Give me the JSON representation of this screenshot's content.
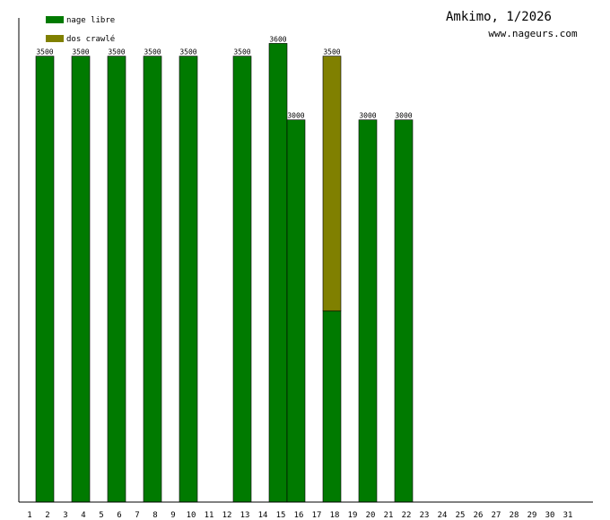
{
  "chart_data": {
    "type": "bar",
    "title": "Amkimo, 1/2026",
    "subtitle": "www.nageurs.com",
    "xlabel": "",
    "ylabel": "",
    "ylim": [
      0,
      3800
    ],
    "grid": false,
    "legend_position": "top-left",
    "colors": {
      "nage_libre": "#007a00",
      "dos_crawle": "#808000",
      "axis": "#000000",
      "bar_stroke": "#000000"
    },
    "categories": [
      "1",
      "2",
      "3",
      "4",
      "5",
      "6",
      "7",
      "8",
      "9",
      "10",
      "11",
      "12",
      "13",
      "14",
      "15",
      "16",
      "17",
      "18",
      "19",
      "20",
      "21",
      "22",
      "23",
      "24",
      "25",
      "26",
      "27",
      "28",
      "29",
      "30",
      "31"
    ],
    "series": [
      {
        "name": "nage libre",
        "color": "#007a00",
        "values": [
          0,
          3500,
          0,
          3500,
          0,
          3500,
          0,
          3500,
          0,
          3500,
          0,
          0,
          3500,
          0,
          3600,
          3000,
          0,
          1500,
          0,
          3000,
          0,
          3000,
          0,
          0,
          0,
          0,
          0,
          0,
          0,
          0,
          0
        ]
      },
      {
        "name": "dos crawlé",
        "color": "#808000",
        "values": [
          0,
          0,
          0,
          0,
          0,
          0,
          0,
          0,
          0,
          0,
          0,
          0,
          0,
          0,
          0,
          0,
          0,
          2000,
          0,
          0,
          0,
          0,
          0,
          0,
          0,
          0,
          0,
          0,
          0,
          0,
          0
        ]
      }
    ],
    "totals": [
      0,
      3500,
      0,
      3500,
      0,
      3500,
      0,
      3500,
      0,
      3500,
      0,
      0,
      3500,
      0,
      3600,
      3000,
      0,
      3500,
      0,
      3000,
      0,
      3000,
      0,
      0,
      0,
      0,
      0,
      0,
      0,
      0,
      0
    ]
  }
}
